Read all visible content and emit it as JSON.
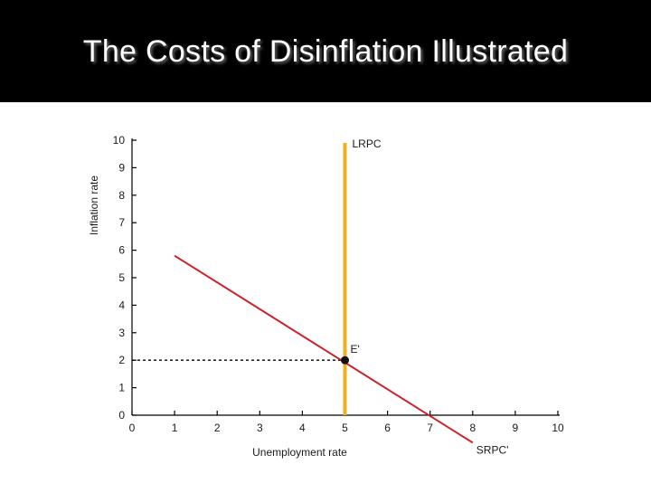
{
  "slide": {
    "title": "The Costs of Disinflation Illustrated"
  },
  "chart_data": {
    "type": "line",
    "xlabel": "Unemployment rate",
    "ylabel": "Inflation rate",
    "xlim": [
      0,
      10
    ],
    "ylim": [
      0,
      10
    ],
    "x_ticks": [
      0,
      1,
      2,
      3,
      4,
      5,
      6,
      7,
      8,
      9,
      10
    ],
    "y_ticks": [
      0,
      1,
      2,
      3,
      4,
      5,
      6,
      7,
      8,
      9,
      10
    ],
    "grid": false,
    "series": [
      {
        "name": "SRPC'",
        "color": "#cc2229",
        "points": [
          [
            1,
            5.8
          ],
          [
            8.0,
            -1.0
          ]
        ]
      },
      {
        "name": "LRPC",
        "color": "#f2b01e",
        "points": [
          [
            5,
            0
          ],
          [
            5,
            9.9
          ]
        ]
      }
    ],
    "point": {
      "label": "E'",
      "x": 5,
      "y": 2
    },
    "dashed_guide": {
      "color": "#000000"
    }
  }
}
